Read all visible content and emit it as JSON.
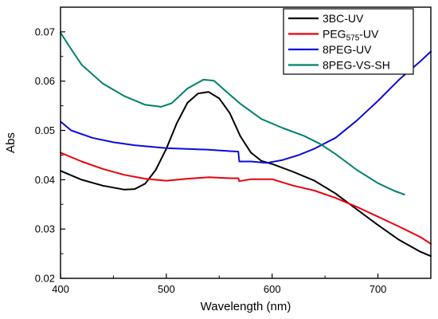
{
  "chart_data": {
    "type": "line",
    "title": "",
    "xlabel": "Wavelength (nm)",
    "ylabel": "Abs",
    "xlim": [
      400,
      750
    ],
    "ylim": [
      0.02,
      0.075
    ],
    "x_ticks": [
      400,
      500,
      600,
      700
    ],
    "y_ticks": [
      0.02,
      0.03,
      0.04,
      0.05,
      0.06,
      0.07
    ],
    "x_tick_labels": [
      "400",
      "500",
      "600",
      "700"
    ],
    "y_tick_labels": [
      "0.02",
      "0.03",
      "0.04",
      "0.05",
      "0.06",
      "0.07"
    ],
    "grid": false,
    "legend_position": "top-right",
    "series": [
      {
        "name": "3BC-UV",
        "label_main": "3BC-UV",
        "label_sub": "",
        "label_tail": "",
        "color": "#000000",
        "points": [
          [
            400,
            0.0418
          ],
          [
            420,
            0.04
          ],
          [
            440,
            0.0388
          ],
          [
            460,
            0.038
          ],
          [
            470,
            0.0381
          ],
          [
            480,
            0.0392
          ],
          [
            490,
            0.042
          ],
          [
            500,
            0.0463
          ],
          [
            510,
            0.0515
          ],
          [
            520,
            0.0556
          ],
          [
            530,
            0.0575
          ],
          [
            540,
            0.0578
          ],
          [
            550,
            0.0565
          ],
          [
            560,
            0.0535
          ],
          [
            570,
            0.0488
          ],
          [
            580,
            0.0455
          ],
          [
            590,
            0.0438
          ],
          [
            600,
            0.0432
          ],
          [
            620,
            0.0416
          ],
          [
            640,
            0.0398
          ],
          [
            660,
            0.0372
          ],
          [
            680,
            0.034
          ],
          [
            700,
            0.0308
          ],
          [
            720,
            0.0278
          ],
          [
            740,
            0.0254
          ],
          [
            750,
            0.0245
          ]
        ]
      },
      {
        "name": "PEG575-UV",
        "label_main": "PEG",
        "label_sub": "575",
        "label_tail": "-UV",
        "color": "#e8000b",
        "points": [
          [
            400,
            0.0455
          ],
          [
            420,
            0.0437
          ],
          [
            440,
            0.0422
          ],
          [
            460,
            0.041
          ],
          [
            480,
            0.0402
          ],
          [
            500,
            0.0398
          ],
          [
            520,
            0.0402
          ],
          [
            540,
            0.0405
          ],
          [
            560,
            0.0403
          ],
          [
            568,
            0.0403
          ],
          [
            569,
            0.0397
          ],
          [
            580,
            0.0401
          ],
          [
            600,
            0.0401
          ],
          [
            620,
            0.0388
          ],
          [
            640,
            0.0378
          ],
          [
            660,
            0.0363
          ],
          [
            680,
            0.0345
          ],
          [
            700,
            0.0325
          ],
          [
            720,
            0.0305
          ],
          [
            740,
            0.0284
          ],
          [
            750,
            0.027
          ]
        ]
      },
      {
        "name": "8PEG-UV",
        "label_main": "8PEG-UV",
        "label_sub": "",
        "label_tail": "",
        "color": "#0b0bdc",
        "points": [
          [
            400,
            0.0518
          ],
          [
            410,
            0.05
          ],
          [
            430,
            0.0485
          ],
          [
            450,
            0.0476
          ],
          [
            470,
            0.047
          ],
          [
            500,
            0.0464
          ],
          [
            540,
            0.0461
          ],
          [
            560,
            0.0458
          ],
          [
            568,
            0.0457
          ],
          [
            569,
            0.0437
          ],
          [
            580,
            0.0437
          ],
          [
            595,
            0.0434
          ],
          [
            610,
            0.044
          ],
          [
            625,
            0.045
          ],
          [
            640,
            0.0463
          ],
          [
            660,
            0.0485
          ],
          [
            680,
            0.052
          ],
          [
            700,
            0.056
          ],
          [
            720,
            0.0603
          ],
          [
            740,
            0.064
          ],
          [
            750,
            0.066
          ]
        ]
      },
      {
        "name": "8PEG-VS-SH",
        "label_main": "8PEG-VS-SH",
        "label_sub": "",
        "label_tail": "",
        "color": "#00806e",
        "points": [
          [
            400,
            0.0698
          ],
          [
            410,
            0.0665
          ],
          [
            420,
            0.0633
          ],
          [
            440,
            0.0595
          ],
          [
            460,
            0.057
          ],
          [
            480,
            0.0552
          ],
          [
            495,
            0.0548
          ],
          [
            505,
            0.0555
          ],
          [
            520,
            0.0585
          ],
          [
            535,
            0.0603
          ],
          [
            545,
            0.0601
          ],
          [
            555,
            0.0582
          ],
          [
            570,
            0.0554
          ],
          [
            590,
            0.0523
          ],
          [
            610,
            0.0505
          ],
          [
            630,
            0.0489
          ],
          [
            645,
            0.0473
          ],
          [
            660,
            0.0452
          ],
          [
            680,
            0.042
          ],
          [
            700,
            0.0393
          ],
          [
            715,
            0.0378
          ],
          [
            725,
            0.037
          ]
        ]
      }
    ]
  }
}
